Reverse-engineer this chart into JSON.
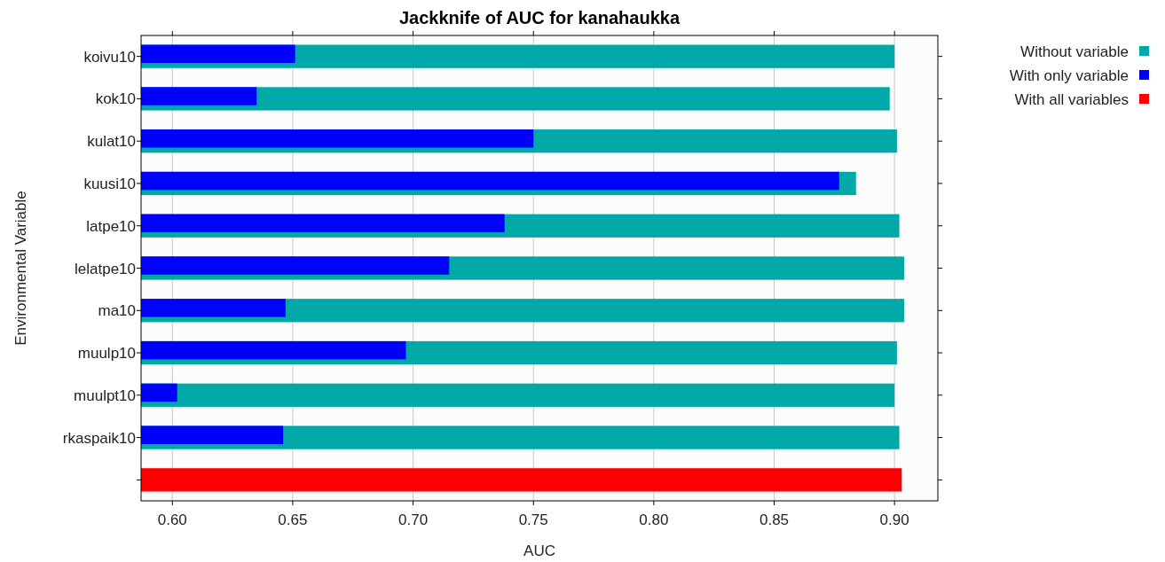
{
  "chart_data": {
    "type": "bar",
    "orientation": "horizontal",
    "title": "Jackknife of AUC for kanahaukka",
    "xlabel": "AUC",
    "ylabel": "Environmental Variable",
    "categories": [
      "koivu10",
      "kok10",
      "kulat10",
      "kuusi10",
      "latpe10",
      "lelatpe10",
      "ma10",
      "muulp10",
      "muulpt10",
      "rkaspaik10",
      null
    ],
    "series": [
      {
        "name": "Without variable",
        "color": "#00a8a8",
        "values": [
          0.9,
          0.898,
          0.901,
          0.884,
          0.902,
          0.904,
          0.904,
          0.901,
          0.9,
          0.902,
          null
        ]
      },
      {
        "name": "With only variable",
        "color": "#0000ff",
        "values": [
          0.651,
          0.635,
          0.75,
          0.877,
          0.738,
          0.715,
          0.647,
          0.697,
          0.602,
          0.646,
          null
        ]
      },
      {
        "name": "With all variables",
        "color": "#ff0000",
        "values": [
          null,
          null,
          null,
          null,
          null,
          null,
          null,
          null,
          null,
          null,
          0.903
        ]
      }
    ],
    "xlim": [
      0.587,
      0.918
    ],
    "xticks": [
      {
        "value": 0.6,
        "label": "0.60"
      },
      {
        "value": 0.65,
        "label": "0.65"
      },
      {
        "value": 0.7,
        "label": "0.70"
      },
      {
        "value": 0.75,
        "label": "0.75"
      },
      {
        "value": 0.8,
        "label": "0.80"
      },
      {
        "value": 0.85,
        "label": "0.85"
      },
      {
        "value": 0.9,
        "label": "0.90"
      }
    ],
    "grid": "x",
    "legend": "top right"
  }
}
